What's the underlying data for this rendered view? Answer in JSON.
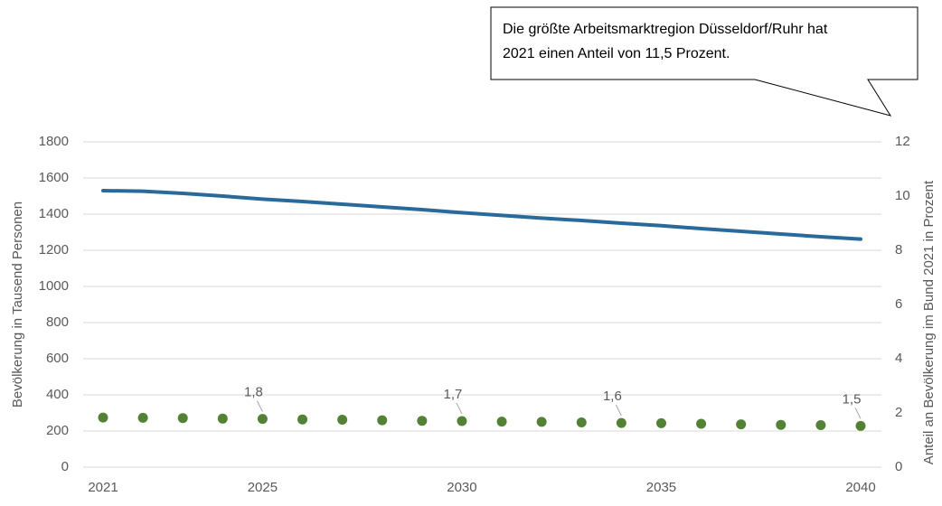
{
  "chart_data": {
    "type": "line",
    "annotation": [
      "Die größte Arbeitsmarktregion Düsseldorf/Ruhr hat",
      "2021 einen Anteil von 11,5 Prozent."
    ],
    "y_label": "Bevölkerung in Tausend Personen",
    "y2_label": "Anteil an Bevölkerung im Bund 2021 in Prozent",
    "x": [
      2021,
      2022,
      2023,
      2024,
      2025,
      2026,
      2027,
      2028,
      2029,
      2030,
      2031,
      2032,
      2033,
      2034,
      2035,
      2036,
      2037,
      2038,
      2039,
      2040
    ],
    "xlim": [
      2021,
      2040
    ],
    "xticks": [
      2021,
      2025,
      2030,
      2035,
      2040
    ],
    "ylim": [
      0,
      1800
    ],
    "yticks": [
      0,
      200,
      400,
      600,
      800,
      1000,
      1200,
      1400,
      1600,
      1800
    ],
    "y2lim": [
      0,
      12
    ],
    "y2ticks": [
      0,
      2,
      4,
      6,
      8,
      10,
      12
    ],
    "grid": true,
    "series": [
      {
        "color": "#2a6a9b",
        "style": "line",
        "values": [
          1530,
          1527,
          1515,
          1500,
          1483,
          1470,
          1455,
          1440,
          1425,
          1408,
          1393,
          1378,
          1365,
          1350,
          1336,
          1320,
          1305,
          1290,
          1275,
          1262
        ]
      },
      {
        "color": "#548235",
        "style": "dots",
        "axis": "y2",
        "values": [
          1.83,
          1.82,
          1.81,
          1.79,
          1.78,
          1.76,
          1.75,
          1.73,
          1.71,
          1.7,
          1.68,
          1.67,
          1.65,
          1.63,
          1.62,
          1.6,
          1.58,
          1.56,
          1.55,
          1.52
        ],
        "value_labels": [
          null,
          null,
          null,
          null,
          "1,8",
          null,
          null,
          null,
          null,
          "1,7",
          null,
          null,
          null,
          "1,6",
          null,
          null,
          null,
          null,
          null,
          "1,5"
        ]
      }
    ]
  }
}
